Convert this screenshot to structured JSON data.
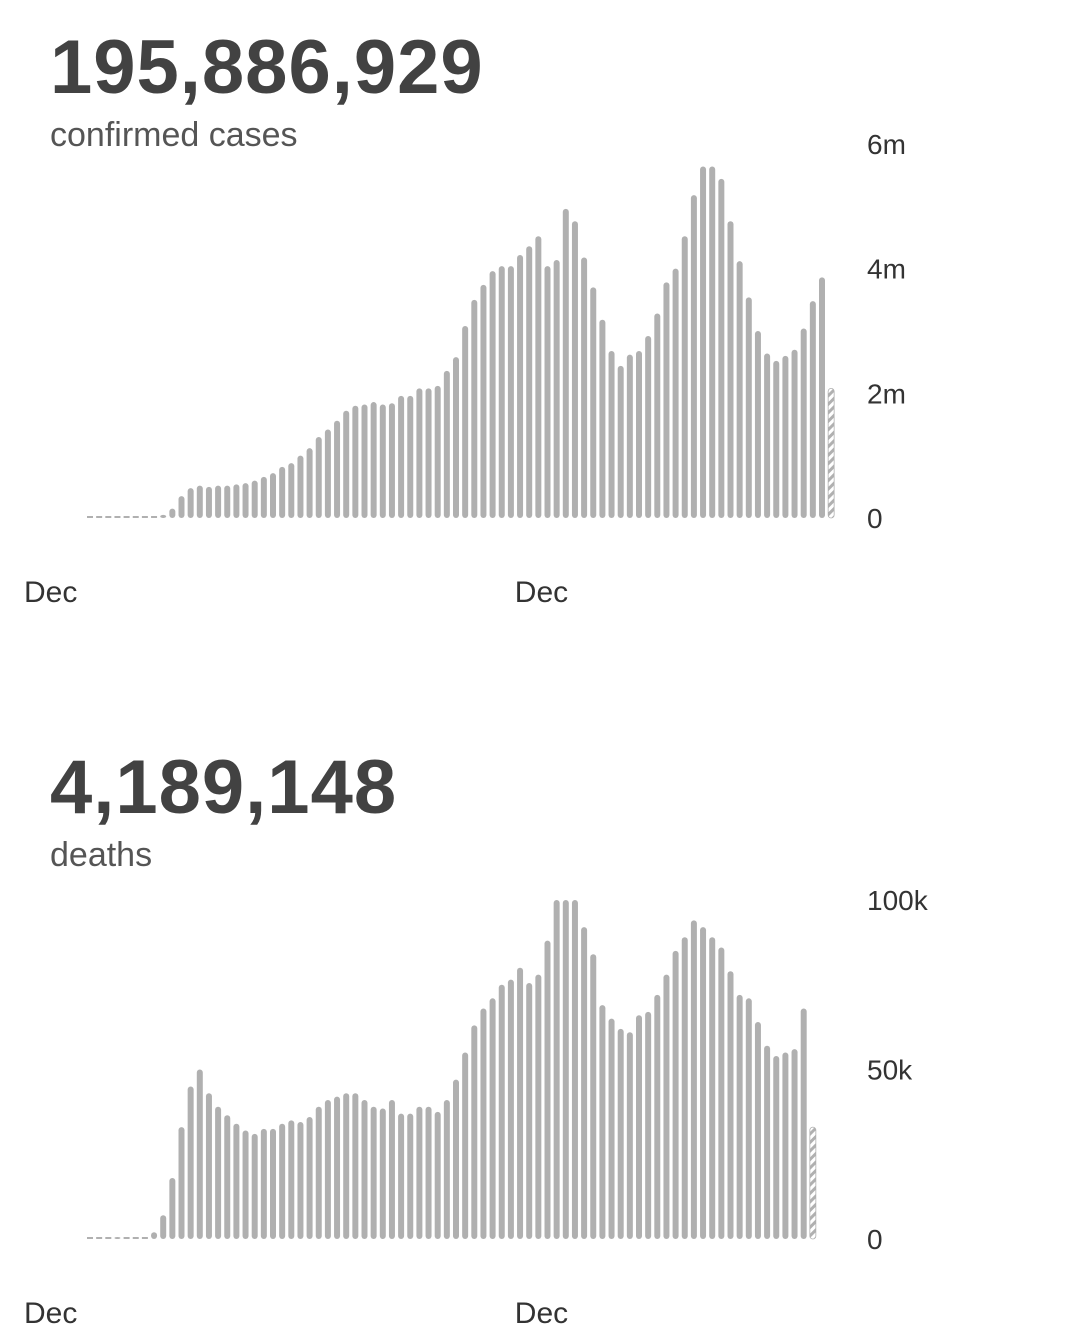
{
  "cases": {
    "total": "195,886,929",
    "label": "confirmed cases",
    "chart_data": {
      "type": "bar",
      "bar_color": "#b0b0b0",
      "partial_bar_color": "#b0b0b0",
      "ylim": [
        0,
        6000000
      ],
      "y_ticks": [
        {
          "value": 0,
          "label": "0"
        },
        {
          "value": 2000000,
          "label": "2m"
        },
        {
          "value": 4000000,
          "label": "4m"
        },
        {
          "value": 6000000,
          "label": "6m"
        }
      ],
      "x_labels": [
        {
          "index": 0,
          "label": "Dec"
        },
        {
          "index": 52,
          "label": "Dec"
        }
      ],
      "values": [
        0,
        0,
        5000,
        15000,
        8000,
        0,
        0,
        10000,
        50000,
        150000,
        350000,
        480000,
        520000,
        500000,
        520000,
        520000,
        540000,
        560000,
        600000,
        660000,
        720000,
        820000,
        880000,
        1000000,
        1120000,
        1300000,
        1420000,
        1560000,
        1720000,
        1800000,
        1820000,
        1860000,
        1820000,
        1840000,
        1960000,
        1960000,
        2080000,
        2080000,
        2120000,
        2360000,
        2580000,
        3080000,
        3500000,
        3740000,
        3960000,
        4040000,
        4040000,
        4220000,
        4360000,
        4520000,
        4040000,
        4140000,
        4960000,
        4760000,
        4180000,
        3700000,
        3180000,
        2680000,
        2440000,
        2620000,
        2680000,
        2920000,
        3280000,
        3780000,
        4000000,
        4520000,
        5180000,
        5640000,
        5640000,
        5440000,
        4760000,
        4120000,
        3540000,
        3000000,
        2640000,
        2520000,
        2600000,
        2700000,
        3040000,
        3480000,
        3860000
      ],
      "partial_last": {
        "value": 2080000
      }
    }
  },
  "deaths": {
    "total": "4,189,148",
    "label": "deaths",
    "chart_data": {
      "type": "bar",
      "bar_color": "#b0b0b0",
      "partial_bar_color": "#b0b0b0",
      "ylim": [
        0,
        100000
      ],
      "y_ticks": [
        {
          "value": 0,
          "label": "0"
        },
        {
          "value": 50000,
          "label": "50k"
        },
        {
          "value": 100000,
          "label": "100k"
        }
      ],
      "x_labels": [
        {
          "index": 0,
          "label": "Dec"
        },
        {
          "index": 52,
          "label": "Dec"
        }
      ],
      "values": [
        0,
        0,
        200,
        600,
        300,
        0,
        0,
        2000,
        7000,
        18000,
        33000,
        45000,
        50000,
        43000,
        39000,
        36500,
        34000,
        32000,
        31000,
        32500,
        32500,
        34000,
        35000,
        34500,
        36000,
        39000,
        41000,
        42000,
        43000,
        43000,
        41000,
        39000,
        38500,
        41000,
        37000,
        37000,
        39000,
        39000,
        37500,
        41000,
        47000,
        55000,
        63000,
        68000,
        71000,
        75000,
        76500,
        80000,
        75500,
        78000,
        88000,
        100000,
        100000,
        100000,
        92000,
        84000,
        69000,
        65000,
        62000,
        61000,
        66000,
        67000,
        72000,
        78000,
        85000,
        89000,
        94000,
        92000,
        89000,
        86000,
        79000,
        72000,
        71000,
        64000,
        57000,
        54000,
        55000,
        56000,
        68000
      ],
      "partial_last": {
        "value": 33000
      }
    }
  }
}
